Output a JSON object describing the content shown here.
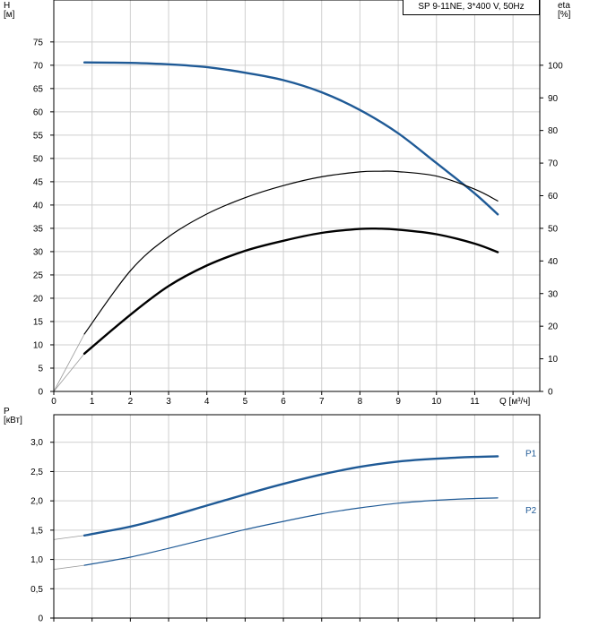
{
  "chart_data": [
    {
      "type": "line",
      "title": "SP 9-11NE, 3*400 V, 50Hz",
      "xlabel": "Q [м³/ч]",
      "ylabel": "H\n[м]",
      "y2label": "eta\n[%]",
      "xlim": [
        0,
        12.7
      ],
      "ylim": [
        0,
        84
      ],
      "y2lim": [
        0,
        120
      ],
      "x_ticks": [
        "0",
        "1",
        "2",
        "3",
        "4",
        "5",
        "6",
        "7",
        "8",
        "9",
        "10",
        "11"
      ],
      "y_ticks": [
        "0",
        "5",
        "10",
        "15",
        "20",
        "25",
        "30",
        "35",
        "40",
        "45",
        "50",
        "55",
        "60",
        "65",
        "70",
        "75"
      ],
      "y2_ticks": [
        "0",
        "10",
        "20",
        "30",
        "40",
        "50",
        "60",
        "70",
        "80",
        "90",
        "100"
      ],
      "grid": true,
      "series": [
        {
          "axis": "left",
          "color": "#1f5a96",
          "width": 2.4,
          "x": [
            0.8,
            2,
            3,
            4,
            5,
            6,
            7,
            8,
            9,
            10,
            11,
            11.6
          ],
          "y": [
            70.6,
            70.5,
            70.2,
            69.6,
            68.4,
            66.8,
            64.2,
            60.4,
            55.4,
            49.0,
            42.5,
            38.0
          ]
        },
        {
          "axis": "right",
          "color": "#000000",
          "width": 1.2,
          "x": [
            0.8,
            2,
            3,
            4,
            5,
            6,
            7,
            8,
            8.5,
            9,
            10,
            11,
            11.6
          ],
          "y": [
            17.6,
            37.0,
            47.4,
            54.4,
            59.4,
            63.1,
            65.8,
            67.3,
            67.5,
            67.4,
            66.0,
            62.0,
            58.4
          ]
        },
        {
          "axis": "right",
          "color": "#000000",
          "width": 2.4,
          "x": [
            0.8,
            2,
            3,
            4,
            5,
            6,
            7,
            8,
            8.5,
            9,
            10,
            11,
            11.6
          ],
          "y": [
            11.6,
            23.5,
            32.3,
            38.6,
            43.1,
            46.2,
            48.6,
            49.8,
            49.9,
            49.6,
            48.2,
            45.3,
            42.7
          ]
        }
      ],
      "guides": [
        {
          "axis": "right",
          "x": [
            0,
            0.8
          ],
          "y": [
            0,
            17.6
          ]
        },
        {
          "axis": "right",
          "x": [
            0,
            0.8
          ],
          "y": [
            0,
            11.6
          ]
        }
      ]
    },
    {
      "type": "line",
      "xlabel": "",
      "ylabel": "P\n[кВт]",
      "xlim": [
        0,
        12.7
      ],
      "ylim": [
        0,
        3.47
      ],
      "y_ticks": [
        "0",
        "0,5",
        "1,0",
        "1,5",
        "2,0",
        "2,5",
        "3,0"
      ],
      "grid": true,
      "series": [
        {
          "name": "P1",
          "color": "#1f5a96",
          "width": 2.4,
          "x": [
            0.8,
            2,
            3,
            4,
            5,
            6,
            7,
            8,
            9,
            10,
            11,
            11.6
          ],
          "y": [
            1.41,
            1.56,
            1.73,
            1.92,
            2.11,
            2.29,
            2.45,
            2.58,
            2.67,
            2.72,
            2.75,
            2.76
          ]
        },
        {
          "name": "P2",
          "color": "#1f5a96",
          "width": 1.2,
          "x": [
            0.8,
            2,
            3,
            4,
            5,
            6,
            7,
            8,
            9,
            10,
            11,
            11.6
          ],
          "y": [
            0.9,
            1.04,
            1.19,
            1.35,
            1.51,
            1.65,
            1.78,
            1.88,
            1.96,
            2.01,
            2.04,
            2.05
          ]
        }
      ],
      "guides": [
        {
          "x": [
            0,
            0.8
          ],
          "y": [
            1.34,
            1.41
          ]
        },
        {
          "x": [
            0,
            0.8
          ],
          "y": [
            0.83,
            0.9
          ]
        }
      ]
    }
  ]
}
